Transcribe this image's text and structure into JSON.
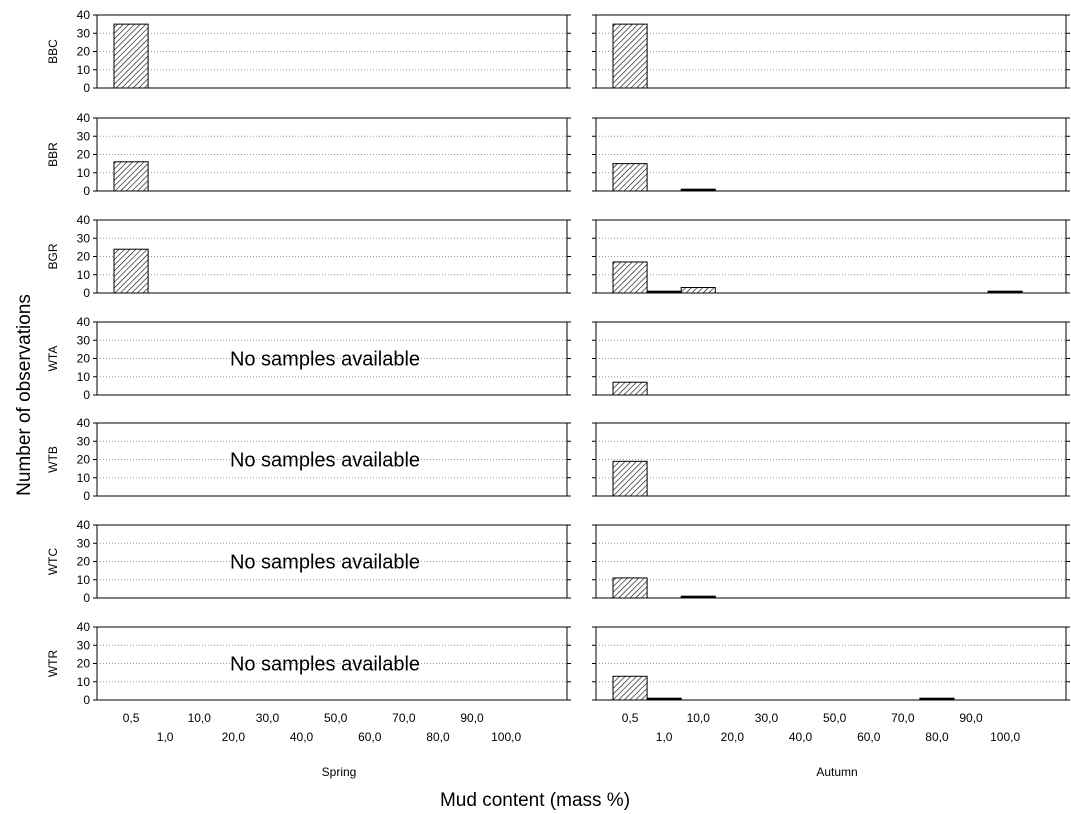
{
  "chart_data": {
    "type": "bar",
    "ylabel": "Number of observations",
    "xlabel": "Mud content (mass %)",
    "ylim": [
      0,
      40
    ],
    "yticks": [
      "0",
      "10",
      "20",
      "30",
      "40"
    ],
    "grid": true,
    "categories": [
      "0,5",
      "1,0",
      "10,0",
      "20,0",
      "30,0",
      "40,0",
      "50,0",
      "60,0",
      "70,0",
      "80,0",
      "90,0",
      "100,0"
    ],
    "columns": [
      "Spring",
      "Autumn"
    ],
    "rows": [
      "BBC",
      "BBR",
      "BGR",
      "WTA",
      "WTB",
      "WTC",
      "WTR"
    ],
    "no_data_text": "No samples available",
    "panels": [
      {
        "row": "BBC",
        "column": "Spring",
        "values": [
          35,
          0,
          0,
          0,
          0,
          0,
          0,
          0,
          0,
          0,
          0,
          0
        ]
      },
      {
        "row": "BBC",
        "column": "Autumn",
        "values": [
          35,
          0,
          0,
          0,
          0,
          0,
          0,
          0,
          0,
          0,
          0,
          0
        ]
      },
      {
        "row": "BBR",
        "column": "Spring",
        "values": [
          16,
          0,
          0,
          0,
          0,
          0,
          0,
          0,
          0,
          0,
          0,
          0
        ]
      },
      {
        "row": "BBR",
        "column": "Autumn",
        "values": [
          15,
          0,
          1,
          0,
          0,
          0,
          0,
          0,
          0,
          0,
          0,
          0
        ]
      },
      {
        "row": "BGR",
        "column": "Spring",
        "values": [
          24,
          0,
          0,
          0,
          0,
          0,
          0,
          0,
          0,
          0,
          0,
          0
        ]
      },
      {
        "row": "BGR",
        "column": "Autumn",
        "values": [
          17,
          1,
          3,
          0,
          0,
          0,
          0,
          0,
          0,
          0,
          0,
          1
        ]
      },
      {
        "row": "WTA",
        "column": "Spring",
        "values": null
      },
      {
        "row": "WTA",
        "column": "Autumn",
        "values": [
          7,
          0,
          0,
          0,
          0,
          0,
          0,
          0,
          0,
          0,
          0,
          0
        ]
      },
      {
        "row": "WTB",
        "column": "Spring",
        "values": null
      },
      {
        "row": "WTB",
        "column": "Autumn",
        "values": [
          19,
          0,
          0,
          0,
          0,
          0,
          0,
          0,
          0,
          0,
          0,
          0
        ]
      },
      {
        "row": "WTC",
        "column": "Spring",
        "values": null
      },
      {
        "row": "WTC",
        "column": "Autumn",
        "values": [
          11,
          0,
          1,
          0,
          0,
          0,
          0,
          0,
          0,
          0,
          0,
          0
        ]
      },
      {
        "row": "WTR",
        "column": "Spring",
        "values": null
      },
      {
        "row": "WTR",
        "column": "Autumn",
        "values": [
          13,
          1,
          0,
          0,
          0,
          0,
          0,
          0,
          0,
          1,
          0,
          0
        ]
      }
    ]
  }
}
